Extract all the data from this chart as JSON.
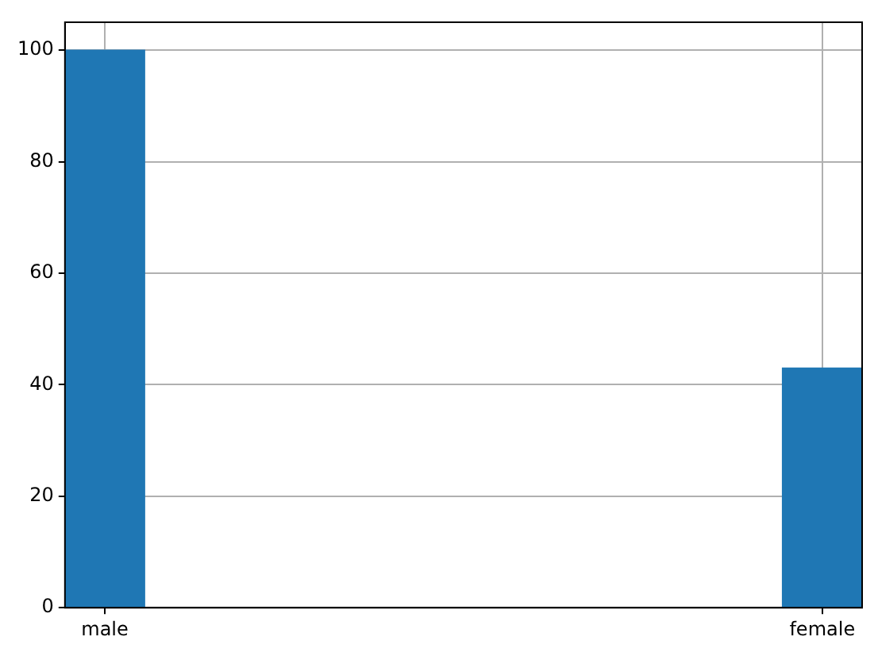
{
  "chart_data": {
    "type": "bar",
    "categories": [
      "male",
      null,
      null,
      null,
      null,
      null,
      null,
      null,
      null,
      "female"
    ],
    "values": [
      100,
      null,
      null,
      null,
      null,
      null,
      null,
      null,
      null,
      43
    ],
    "color": "#1f77b4",
    "ylim": [
      0,
      105
    ],
    "yticks": [
      0,
      20,
      40,
      60,
      80,
      100
    ],
    "grid": true,
    "legend": false
  }
}
